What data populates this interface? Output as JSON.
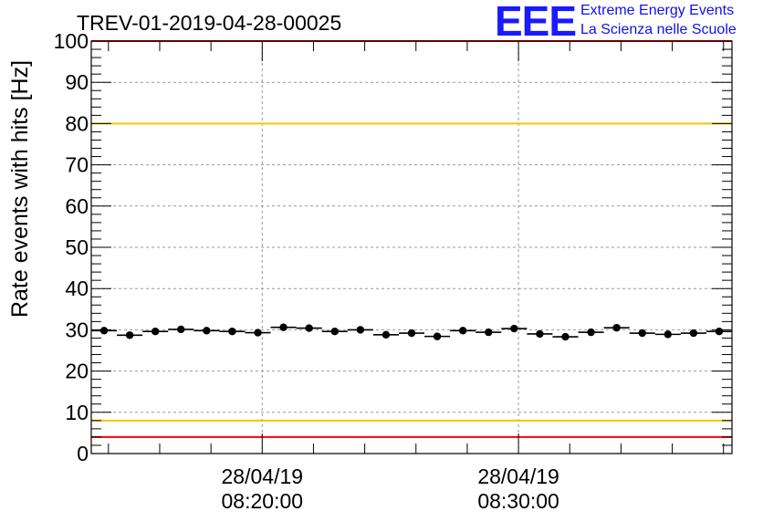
{
  "logo": {
    "mark": "EEE",
    "line1": "Extreme Energy Events",
    "line2": "La Scienza nelle Scuole"
  },
  "colors": {
    "data": "#000000",
    "red_threshold": "#ff0000",
    "yellow_threshold": "#f0c800",
    "grid": "#999999",
    "logo": "#1a1aff"
  },
  "chart_data": {
    "type": "scatter",
    "title": "TREV-01-2019-04-28-00025",
    "ylabel": "Rate events with hits [Hz]",
    "xlabel": "",
    "ylim": [
      0,
      100
    ],
    "yticks": [
      0,
      10,
      20,
      30,
      40,
      50,
      60,
      70,
      80,
      90,
      100
    ],
    "xlim_min": [
      13.33,
      38.33
    ],
    "xticks": [
      {
        "value_min": 20,
        "date": "28/04/19",
        "time": "08:20:00"
      },
      {
        "value_min": 30,
        "date": "28/04/19",
        "time": "08:30:00"
      }
    ],
    "grid": true,
    "series": [
      {
        "name": "rate",
        "bin_width_min": 1,
        "x_min": [
          13.83,
          14.83,
          15.83,
          16.83,
          17.83,
          18.83,
          19.83,
          20.83,
          21.83,
          22.83,
          23.83,
          24.83,
          25.83,
          26.83,
          27.83,
          28.83,
          29.83,
          30.83,
          31.83,
          32.83,
          33.83,
          34.83,
          35.83,
          36.83,
          37.83
        ],
        "y": [
          29.8,
          28.7,
          29.6,
          30.1,
          29.8,
          29.6,
          29.3,
          30.6,
          30.4,
          29.6,
          30.0,
          28.8,
          29.2,
          28.4,
          29.8,
          29.4,
          30.3,
          29.0,
          28.3,
          29.4,
          30.5,
          29.2,
          28.9,
          29.2,
          29.6
        ]
      }
    ],
    "thresholds": [
      {
        "value": 100,
        "color": "red"
      },
      {
        "value": 80,
        "color": "yellow"
      },
      {
        "value": 8,
        "color": "yellow"
      },
      {
        "value": 4,
        "color": "red"
      }
    ]
  }
}
